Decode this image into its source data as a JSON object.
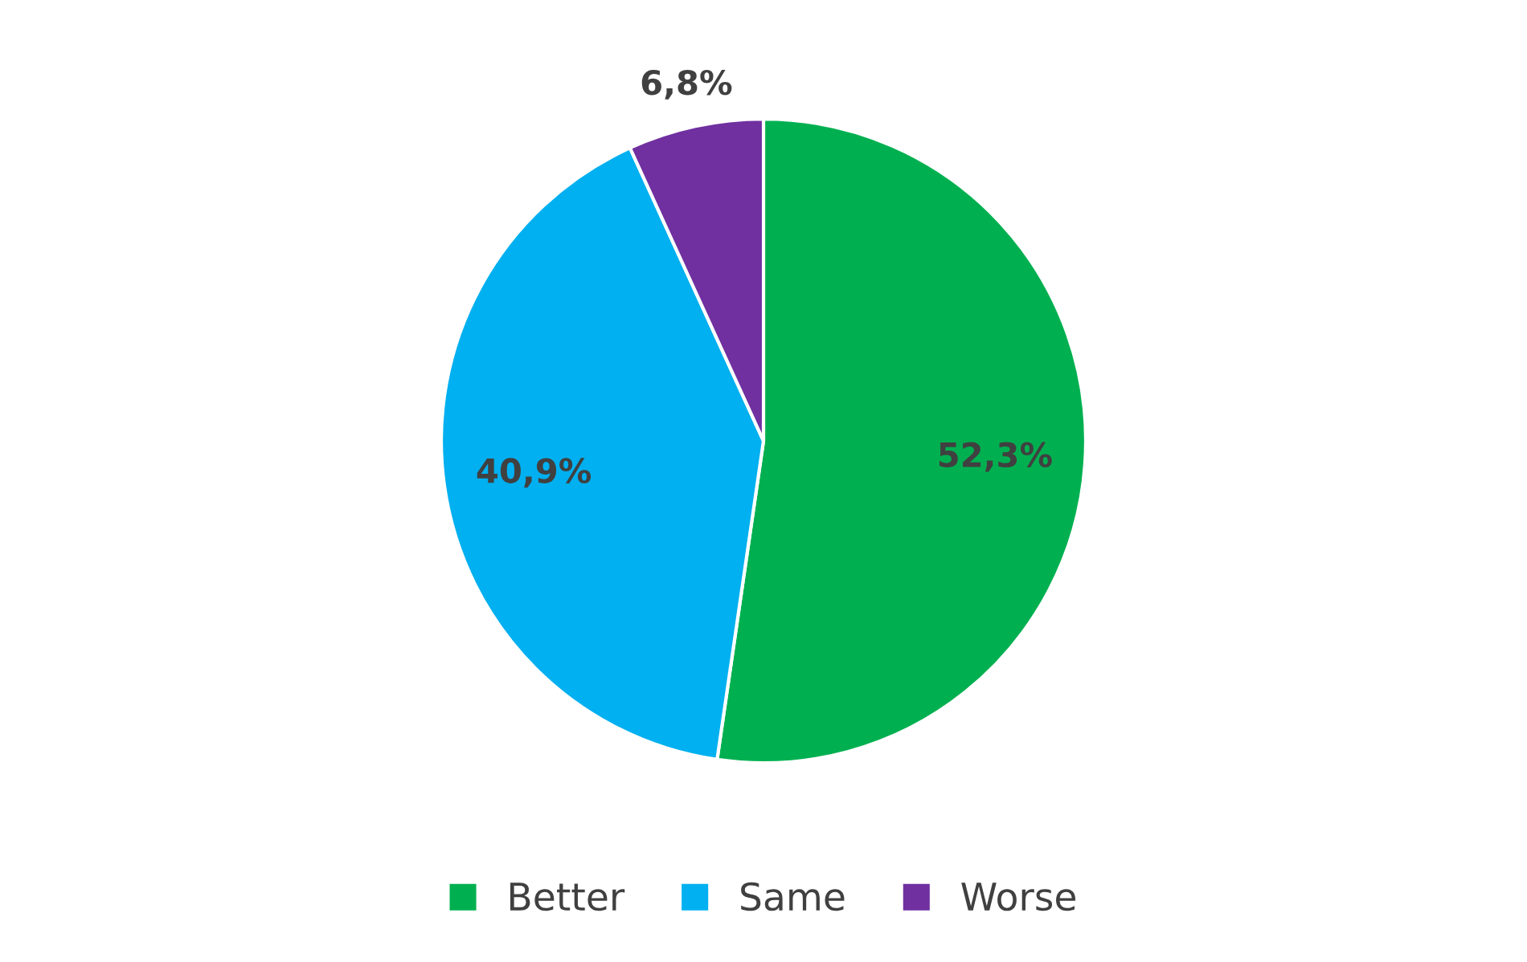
{
  "chart_data": {
    "type": "pie",
    "categories": [
      "Better",
      "Same",
      "Worse"
    ],
    "values": [
      52.3,
      40.9,
      6.8
    ],
    "colors": [
      "#00b050",
      "#00b0f0",
      "#7030a0"
    ],
    "value_labels": [
      "52,3%",
      "40,9%",
      "6,8%"
    ],
    "legend": "bottom"
  }
}
